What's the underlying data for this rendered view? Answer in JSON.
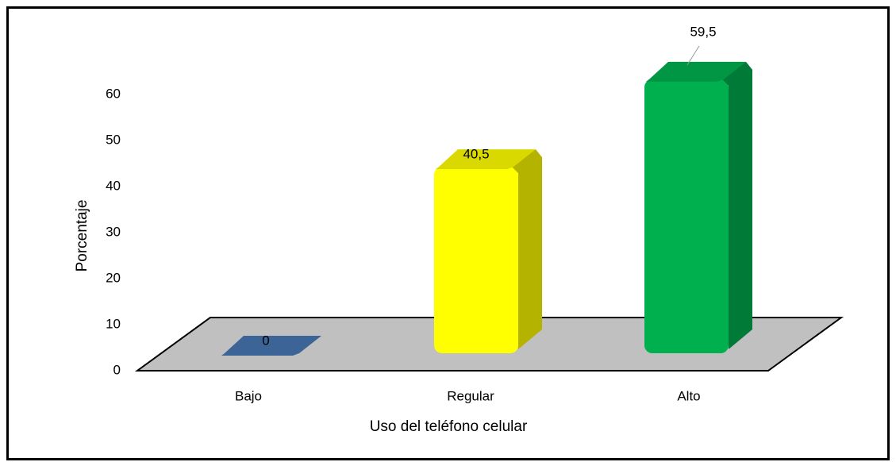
{
  "chart_data": {
    "type": "bar3d",
    "categories": [
      "Bajo",
      "Regular",
      "Alto"
    ],
    "values": [
      0,
      40.5,
      59.5
    ],
    "value_labels": [
      "0",
      "40,5",
      "59,5"
    ],
    "colors": [
      "#3c6496",
      "#ffff00",
      "#00b04f"
    ],
    "ylim": [
      0,
      70
    ],
    "yticks": [
      0,
      10,
      20,
      30,
      40,
      50,
      60
    ],
    "xlabel": "Uso del teléfono celular",
    "ylabel": "Porcentaje"
  }
}
